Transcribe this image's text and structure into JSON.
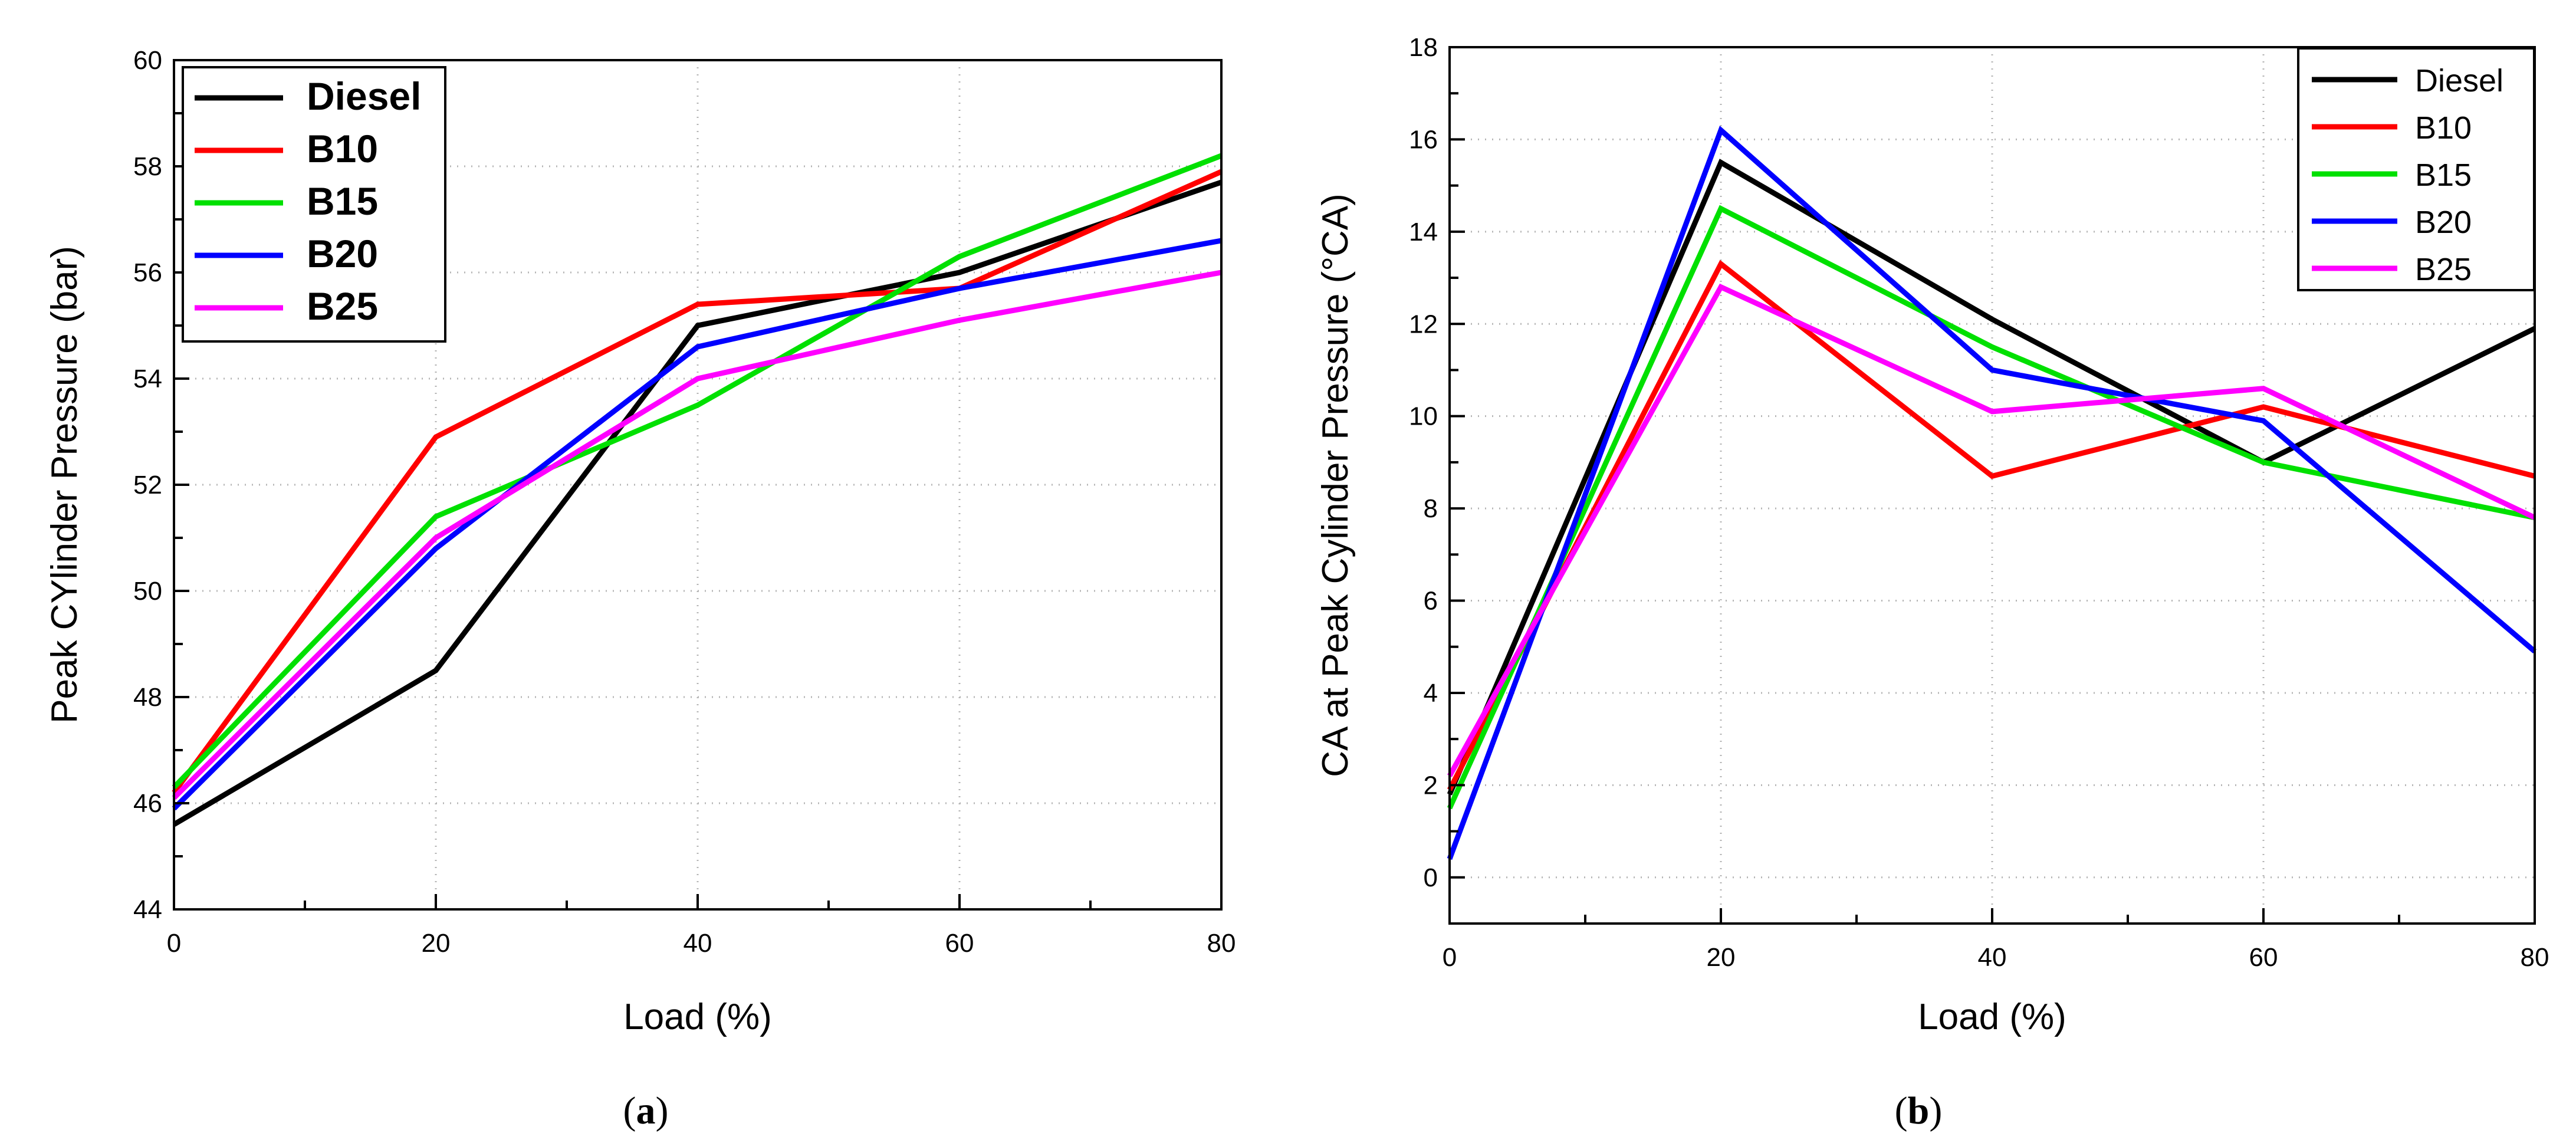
{
  "chart_data": [
    {
      "id": "a",
      "type": "line",
      "caption_prefix": "(",
      "caption_letter": "a",
      "caption_suffix": ")",
      "xlabel": "Load (%)",
      "ylabel": "Peak CYlinder Pressure (bar)",
      "xlim": [
        0,
        80
      ],
      "ylim": [
        44,
        60
      ],
      "xticks": [
        0,
        20,
        40,
        60,
        80
      ],
      "yticks": [
        44,
        46,
        48,
        50,
        52,
        54,
        56,
        58,
        60
      ],
      "grid": true,
      "legend": "top-left",
      "x": [
        0,
        20,
        40,
        60,
        80
      ],
      "series": [
        {
          "name": "Diesel",
          "color": "#000000",
          "values": [
            45.6,
            48.5,
            55.0,
            56.0,
            57.7
          ]
        },
        {
          "name": "B10",
          "color": "#ff0000",
          "values": [
            46.2,
            52.9,
            55.4,
            55.7,
            57.9
          ]
        },
        {
          "name": "B15",
          "color": "#00e000",
          "values": [
            46.3,
            51.4,
            53.5,
            56.3,
            58.2
          ]
        },
        {
          "name": "B20",
          "color": "#0000ff",
          "values": [
            45.9,
            50.8,
            54.6,
            55.7,
            56.6
          ]
        },
        {
          "name": "B25",
          "color": "#ff00ff",
          "values": [
            46.1,
            51.0,
            54.0,
            55.1,
            56.0
          ]
        }
      ]
    },
    {
      "id": "b",
      "type": "line",
      "caption_prefix": "(",
      "caption_letter": "b",
      "caption_suffix": ")",
      "xlabel": "Load (%)",
      "ylabel": "CA at Peak Cylinder Pressure (°CA)",
      "xlim": [
        0,
        80
      ],
      "ylim": [
        -1,
        18
      ],
      "xticks": [
        0,
        20,
        40,
        60,
        80
      ],
      "yticks": [
        0,
        2,
        4,
        6,
        8,
        10,
        12,
        14,
        16,
        18
      ],
      "grid": true,
      "legend": "top-right",
      "x": [
        0,
        20,
        40,
        60,
        80
      ],
      "series": [
        {
          "name": "Diesel",
          "color": "#000000",
          "values": [
            1.8,
            15.5,
            12.1,
            9.0,
            11.9
          ]
        },
        {
          "name": "B10",
          "color": "#ff0000",
          "values": [
            1.9,
            13.3,
            8.7,
            10.2,
            8.7
          ]
        },
        {
          "name": "B15",
          "color": "#00e000",
          "values": [
            1.5,
            14.5,
            11.5,
            9.0,
            7.8
          ]
        },
        {
          "name": "B20",
          "color": "#0000ff",
          "values": [
            0.4,
            16.2,
            11.0,
            9.9,
            4.9
          ]
        },
        {
          "name": "B25",
          "color": "#ff00ff",
          "values": [
            2.2,
            12.8,
            10.1,
            10.6,
            7.8
          ]
        }
      ]
    }
  ]
}
